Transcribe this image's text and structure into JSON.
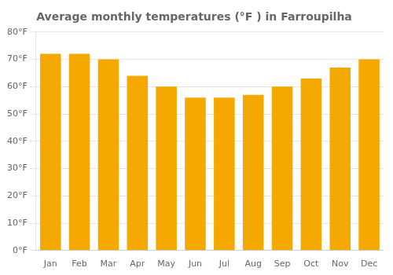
{
  "chart_data": {
    "type": "bar",
    "title": "Average monthly temperatures (°F ) in Farroupilha",
    "categories": [
      "Jan",
      "Feb",
      "Mar",
      "Apr",
      "May",
      "Jun",
      "Jul",
      "Aug",
      "Sep",
      "Oct",
      "Nov",
      "Dec"
    ],
    "values": [
      72,
      72,
      70,
      64,
      60,
      56,
      56,
      57,
      60,
      63,
      67,
      70
    ],
    "color": "#F5A800",
    "ylim": [
      0,
      80
    ],
    "yticks": [
      {
        "value": 0,
        "label": "0°F"
      },
      {
        "value": 10,
        "label": "10°F"
      },
      {
        "value": 20,
        "label": "20°F"
      },
      {
        "value": 30,
        "label": "30°F"
      },
      {
        "value": 40,
        "label": "40°F"
      },
      {
        "value": 50,
        "label": "50°F"
      },
      {
        "value": 60,
        "label": "60°F"
      },
      {
        "value": 70,
        "label": "70°F"
      },
      {
        "value": 80,
        "label": "80°F"
      }
    ],
    "grid": true
  }
}
